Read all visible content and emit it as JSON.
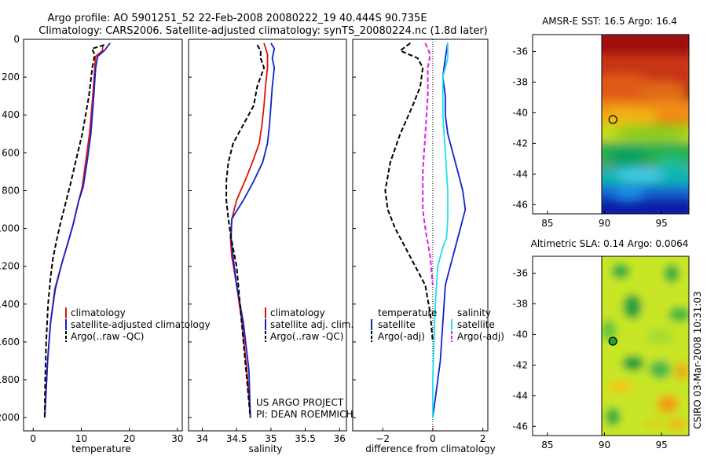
{
  "header": {
    "line1": "Argo profile: AO 5901251_52 22-Feb-2008 20080222_19 40.444S 90.735E",
    "line2": "Climatology: CARS2006. Satellite-adjusted climatology: synTS_20080224.nc (1.8d later)"
  },
  "colors": {
    "clim": "#e01010",
    "sat": "#1020d0",
    "argo": "#000000",
    "sat_diff_s": "#20e0f0",
    "argo_diff_s": "#e020e0"
  },
  "chart_data": [
    {
      "type": "line",
      "id": "temperature",
      "xlabel": "temperature",
      "ylabel": "",
      "xlim": [
        -2,
        31
      ],
      "ylim": [
        0,
        2070
      ],
      "y_reversed": true,
      "xticks": [
        0,
        10,
        20,
        30
      ],
      "yticks": [
        0,
        200,
        400,
        600,
        800,
        1000,
        1200,
        1400,
        1600,
        1800,
        2000
      ],
      "legend": [
        "climatology",
        "satellite-adjusted climatology",
        "Argo(..raw -QC)"
      ],
      "series": [
        {
          "name": "climatology",
          "style": "solid",
          "color": "clim",
          "x": [
            14.5,
            14.4,
            13.0,
            12.8,
            12.4,
            11.7,
            10.9,
            10.2,
            9.4,
            8.5,
            7.4,
            6.0,
            4.5,
            3.6,
            3.0,
            2.6,
            2.4
          ],
          "y": [
            30,
            60,
            90,
            150,
            300,
            500,
            650,
            780,
            860,
            960,
            1060,
            1180,
            1320,
            1500,
            1700,
            1900,
            2000
          ]
        },
        {
          "name": "satellite-adjusted climatology",
          "style": "solid",
          "color": "sat",
          "x": [
            16.0,
            14.8,
            13.4,
            13.0,
            12.6,
            12.0,
            11.2,
            10.4,
            9.4,
            8.3,
            7.2,
            6.0,
            4.6,
            3.6,
            3.0,
            2.6,
            2.4
          ],
          "y": [
            20,
            60,
            90,
            150,
            300,
            500,
            650,
            780,
            860,
            980,
            1080,
            1180,
            1320,
            1500,
            1700,
            1900,
            2000
          ]
        },
        {
          "name": "Argo(..raw -QC)",
          "style": "dash",
          "color": "argo",
          "x": [
            14.8,
            12.2,
            12.8,
            12.3,
            11.6,
            10.2,
            8.8,
            7.8,
            6.8,
            5.8,
            4.9,
            4.1,
            3.6,
            3.1,
            2.7,
            2.5,
            2.4
          ],
          "y": [
            30,
            50,
            80,
            150,
            300,
            500,
            650,
            760,
            860,
            960,
            1060,
            1160,
            1260,
            1400,
            1600,
            1800,
            2000
          ]
        }
      ]
    },
    {
      "type": "line",
      "id": "salinity",
      "xlabel": "salinity",
      "ylabel": "",
      "xlim": [
        33.8,
        36.1
      ],
      "ylim": [
        0,
        2070
      ],
      "y_reversed": true,
      "xticks": [
        34,
        34.5,
        35,
        35.5,
        36
      ],
      "xticklabels": [
        "34",
        "34.5",
        "35",
        "35.5",
        "36"
      ],
      "legend": [
        "climatology",
        "satellite adj. clim.",
        "Argo(..raw -QC)"
      ],
      "annotation": [
        "US ARGO PROJECT",
        "PI: DEAN ROEMMICH"
      ],
      "series": [
        {
          "name": "climatology",
          "style": "solid",
          "color": "clim",
          "x": [
            34.9,
            34.95,
            34.95,
            34.92,
            34.9,
            34.87,
            34.83,
            34.73,
            34.62,
            34.5,
            34.43,
            34.41,
            34.43,
            34.5,
            34.58,
            34.65,
            34.7
          ],
          "y": [
            20,
            80,
            150,
            250,
            350,
            450,
            550,
            650,
            750,
            850,
            950,
            1050,
            1150,
            1300,
            1500,
            1750,
            2000
          ]
        },
        {
          "name": "satellite adj. clim.",
          "style": "solid",
          "color": "sat",
          "x": [
            35.0,
            35.05,
            35.02,
            35.05,
            35.02,
            35.0,
            34.98,
            34.95,
            34.88,
            34.75,
            34.6,
            34.48,
            34.43,
            34.42,
            34.45,
            34.5,
            34.6,
            34.68,
            34.7
          ],
          "y": [
            20,
            50,
            100,
            150,
            250,
            350,
            450,
            550,
            650,
            750,
            850,
            920,
            950,
            1050,
            1150,
            1300,
            1500,
            1750,
            2000
          ]
        },
        {
          "name": "Argo(..raw -QC)",
          "style": "dash",
          "color": "argo",
          "x": [
            34.8,
            34.85,
            34.85,
            34.9,
            34.8,
            34.75,
            34.6,
            34.45,
            34.38,
            34.35,
            34.35,
            34.38,
            34.42,
            34.5,
            34.55,
            34.6,
            34.65,
            34.7
          ],
          "y": [
            30,
            60,
            100,
            150,
            250,
            350,
            450,
            550,
            650,
            750,
            850,
            950,
            1050,
            1200,
            1400,
            1600,
            1800,
            2000
          ]
        }
      ]
    },
    {
      "type": "line",
      "id": "difference",
      "xlabel": "difference from climatology",
      "ylabel": "",
      "xlim": [
        -3.2,
        2.2
      ],
      "ylim": [
        0,
        2070
      ],
      "y_reversed": true,
      "xticks": [
        -2,
        0,
        2
      ],
      "xticklabels": [
        "−2",
        "0",
        "2"
      ],
      "legend_title_t": "temperature",
      "legend_title_s": "salinity",
      "legend": [
        "satellite",
        "Argo(-adj)",
        "satellite",
        "Argo(-adj)"
      ],
      "series": [
        {
          "name": "satellite (temperature)",
          "style": "solid",
          "color": "sat",
          "x": [
            0.6,
            0.5,
            0.4,
            0.5,
            0.5,
            0.6,
            0.8,
            1.0,
            1.2,
            1.3,
            1.1,
            0.9,
            0.7,
            0.5,
            0.4,
            0.3,
            0.1,
            0.0
          ],
          "y": [
            20,
            100,
            200,
            300,
            400,
            500,
            600,
            700,
            800,
            900,
            1000,
            1100,
            1200,
            1300,
            1500,
            1700,
            1900,
            2000
          ]
        },
        {
          "name": "Argo(-adj) (temperature)",
          "style": "dash",
          "color": "argo",
          "x": [
            -0.9,
            -1.3,
            -0.6,
            -0.4,
            -0.5,
            -0.8,
            -1.3,
            -1.7,
            -1.9,
            -1.8,
            -1.5,
            -1.1,
            -0.7,
            -0.3,
            -0.1,
            0.0
          ],
          "y": [
            20,
            60,
            100,
            150,
            250,
            350,
            500,
            650,
            800,
            900,
            1000,
            1100,
            1200,
            1300,
            1450,
            1600
          ]
        },
        {
          "name": "satellite (salinity)",
          "style": "solid",
          "color": "sat_diff_s",
          "x": [
            0.6,
            0.6,
            0.4,
            0.4,
            0.5,
            0.6,
            0.6,
            0.55,
            0.4,
            0.2,
            0.1,
            0.05,
            0.0,
            0.0,
            0.0
          ],
          "y": [
            20,
            100,
            200,
            400,
            600,
            800,
            950,
            1050,
            1100,
            1200,
            1400,
            1600,
            1800,
            1900,
            2000
          ]
        },
        {
          "name": "Argo(-adj) (salinity)",
          "style": "dash",
          "color": "argo_diff_s",
          "x": [
            -0.3,
            -0.1,
            -0.2,
            -0.2,
            -0.3,
            -0.4,
            -0.4,
            -0.3,
            -0.1,
            0.0
          ],
          "y": [
            20,
            80,
            150,
            300,
            500,
            700,
            900,
            1000,
            1150,
            1300
          ]
        }
      ]
    }
  ],
  "maps": [
    {
      "id": "sst",
      "title": "AMSR-E SST: 16.5 Argo: 16.4",
      "xticks": [
        "85",
        "90",
        "95"
      ],
      "yticks": [
        "-36",
        "-38",
        "-40",
        "-42",
        "-44",
        "-46"
      ],
      "argo_marker": {
        "lon": 90.735,
        "lat": -40.444
      }
    },
    {
      "id": "sla",
      "title": "Altimetric SLA: 0.14 Argo: 0.0064",
      "xticks": [
        "85",
        "90",
        "95"
      ],
      "yticks": [
        "-36",
        "-38",
        "-40",
        "-42",
        "-44",
        "-46"
      ],
      "argo_marker": {
        "lon": 90.735,
        "lat": -40.444
      }
    }
  ],
  "side_label": "CSIRO 03-Mar-2008 10:31:03"
}
